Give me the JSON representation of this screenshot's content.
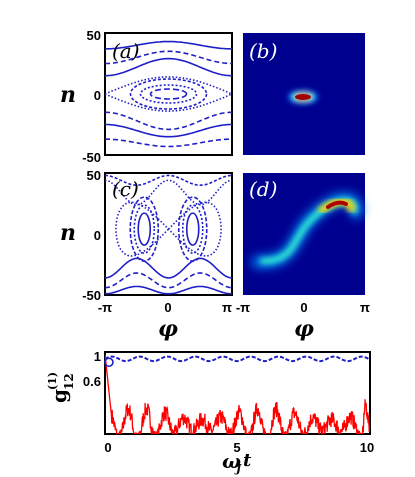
{
  "chart_data": [
    {
      "id": "a",
      "type": "phase-portrait",
      "panel_label": "(a)",
      "ylabel": "n",
      "y_ticks": [
        "50",
        "0",
        "-50"
      ],
      "ylim": [
        -50,
        50
      ],
      "xlim": [
        -3.1416,
        3.1416
      ],
      "color": "#1f1fc8"
    },
    {
      "id": "b",
      "type": "heatmap",
      "panel_label": "(b)",
      "colormap": "jet",
      "blob": {
        "phi_center": 0.0,
        "n_center": 0.0
      }
    },
    {
      "id": "c",
      "type": "phase-portrait",
      "panel_label": "(c)",
      "ylabel": "n",
      "y_ticks": [
        "50",
        "0",
        "-50"
      ],
      "x_ticks": [
        "-π",
        "0",
        "π"
      ],
      "xlabel": "φ",
      "ylim": [
        -50,
        50
      ],
      "xlim": [
        -3.1416,
        3.1416
      ],
      "color": "#1f1fc8"
    },
    {
      "id": "d",
      "type": "heatmap",
      "panel_label": "(d)",
      "x_ticks": [
        "-π",
        "0",
        "π"
      ],
      "xlabel": "φ",
      "colormap": "jet"
    },
    {
      "id": "e",
      "type": "line",
      "ylabel_main": "g",
      "ylabel_sub": "12",
      "ylabel_sup": "(1)",
      "xlabel_main": "ω",
      "xlabel_sub": "J",
      "xlabel_rest": "t",
      "x_ticks": [
        "0",
        "5",
        "10"
      ],
      "y_ticks": [
        "1",
        "0.6"
      ],
      "xlim": [
        0,
        10
      ],
      "ylim": [
        0.3,
        1.02
      ],
      "series": [
        {
          "style": "dashed",
          "color": "#1f1fc8",
          "mean": 0.96,
          "amplitude": 0.02
        },
        {
          "style": "solid",
          "color": "#ff0000",
          "mean": 0.38,
          "amplitude": 0.12
        }
      ],
      "marker": {
        "x": 0.15,
        "y": 0.93,
        "color": "#1f1fc8"
      }
    }
  ]
}
